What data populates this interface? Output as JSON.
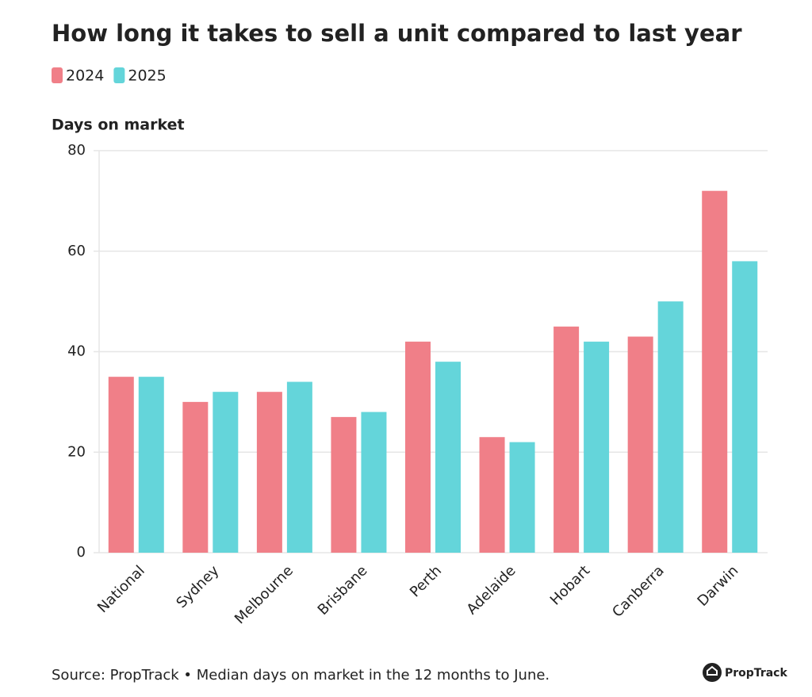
{
  "chart_data": {
    "type": "bar",
    "title": "How long it takes to sell a unit compared to last year",
    "y_label": "Days on market",
    "categories": [
      "National",
      "Sydney",
      "Melbourne",
      "Brisbane",
      "Perth",
      "Adelaide",
      "Hobart",
      "Canberra",
      "Darwin"
    ],
    "series": [
      {
        "name": "2024",
        "color": "#f07f88",
        "values": [
          35,
          30,
          32,
          27,
          42,
          23,
          45,
          43,
          72
        ]
      },
      {
        "name": "2025",
        "color": "#64d5da",
        "values": [
          35,
          32,
          34,
          28,
          38,
          22,
          42,
          50,
          58
        ]
      }
    ],
    "ylim": [
      0,
      80
    ],
    "yticks": [
      0,
      20,
      40,
      60,
      80
    ],
    "grid": true,
    "source": "Source: PropTrack • Median days on market in the 12 months to June."
  },
  "brand": "PropTrack"
}
